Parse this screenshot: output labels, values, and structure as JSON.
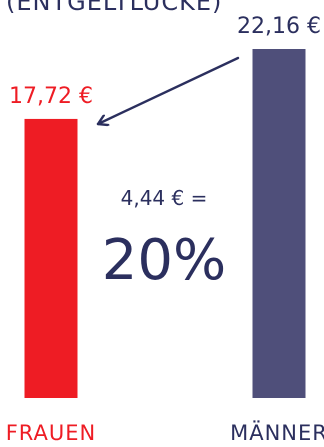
{
  "chart_data": {
    "type": "bar",
    "title": "(ENTGELTLÜCKE)",
    "categories": [
      "FRAUEN",
      "MÄNNER"
    ],
    "values": [
      17.72,
      22.16
    ],
    "value_labels": [
      "17,72 €",
      "22,16 €"
    ],
    "colors": [
      "#EE1C24",
      "#4F4F7A"
    ],
    "annotation": {
      "difference_label": "4,44 € =",
      "percent_label": "20%",
      "arrow": "from-maenner-to-frauen"
    },
    "ylim": [
      0,
      22.16
    ],
    "grid": false,
    "legend": "none"
  },
  "colors": {
    "frauen": "#EE1C24",
    "maenner": "#4F4F7A",
    "text_dark": "#2B2F5E"
  }
}
